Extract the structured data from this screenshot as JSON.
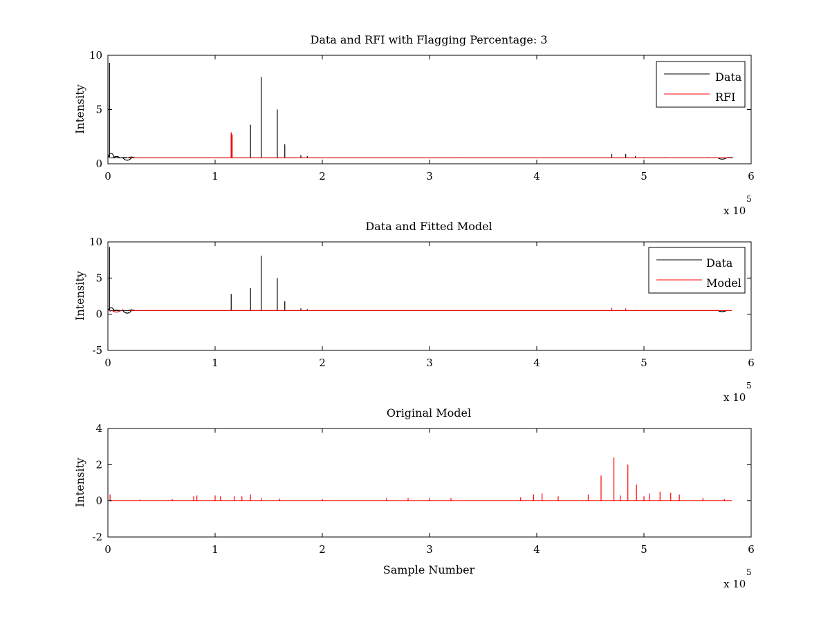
{
  "chart_data": [
    {
      "type": "line",
      "title": "Data and RFI with Flagging Percentage: 3",
      "xlabel": "",
      "ylabel": "Intensity",
      "xlim": [
        0,
        600000
      ],
      "ylim": [
        0,
        10
      ],
      "xticks": [
        0,
        1,
        2,
        3,
        4,
        5,
        6
      ],
      "yticks": [
        0,
        5,
        10
      ],
      "x_multiplier": {
        "base": "x 10",
        "exponent": "5"
      },
      "grid": false,
      "legend": "top-right",
      "baseline": 0.55,
      "series": [
        {
          "name": "Data",
          "color": "#000000",
          "spikes": [
            [
              1500,
              9.3
            ],
            [
              115000,
              2.8
            ],
            [
              133000,
              3.6
            ],
            [
              143000,
              8.0
            ],
            [
              158000,
              5.0
            ],
            [
              165000,
              1.8
            ],
            [
              180000,
              0.8
            ],
            [
              186000,
              0.7
            ],
            [
              470000,
              0.9
            ],
            [
              483000,
              0.9
            ],
            [
              492000,
              0.7
            ],
            [
              500000,
              0.6
            ],
            [
              520000,
              0.6
            ],
            [
              560000,
              0.6
            ]
          ],
          "bumps": [
            [
              3000,
              1.4
            ],
            [
              8000,
              0.8
            ],
            [
              15000,
              0.6
            ],
            [
              22000,
              0.7
            ],
            [
              580000,
              0.6
            ]
          ],
          "dips": [
            [
              18000,
              0.1
            ],
            [
              573000,
              0.3
            ]
          ]
        },
        {
          "name": "RFI",
          "color": "#ff0000",
          "spikes": [
            [
              115000,
              2.9
            ],
            [
              116000,
              2.7
            ],
            [
              260000,
              0.6
            ],
            [
              330000,
              0.6
            ],
            [
              432000,
              0.6
            ]
          ]
        }
      ]
    },
    {
      "type": "line",
      "title": "Data and Fitted Model",
      "xlabel": "",
      "ylabel": "Intensity",
      "xlim": [
        0,
        600000
      ],
      "ylim": [
        -5,
        10
      ],
      "xticks": [
        0,
        1,
        2,
        3,
        4,
        5,
        6
      ],
      "yticks": [
        -5,
        0,
        5,
        10
      ],
      "x_multiplier": {
        "base": "x 10",
        "exponent": "5"
      },
      "grid": false,
      "legend": "top-right",
      "baseline": 0.5,
      "series": [
        {
          "name": "Data",
          "color": "#000000",
          "spikes": [
            [
              1500,
              9.3
            ],
            [
              115000,
              2.8
            ],
            [
              133000,
              3.6
            ],
            [
              143000,
              8.1
            ],
            [
              158000,
              5.0
            ],
            [
              165000,
              1.8
            ],
            [
              180000,
              0.8
            ],
            [
              186000,
              0.7
            ]
          ],
          "bumps": [
            [
              3000,
              1.3
            ],
            [
              8000,
              0.6
            ],
            [
              22000,
              0.7
            ]
          ],
          "dips": [
            [
              18000,
              -0.2
            ],
            [
              573000,
              0.2
            ]
          ]
        },
        {
          "name": "Model",
          "color": "#ff0000",
          "spikes": [
            [
              2000,
              0.3
            ],
            [
              14000,
              0.7
            ],
            [
              470000,
              0.9
            ],
            [
              483000,
              0.8
            ],
            [
              492000,
              0.6
            ]
          ],
          "dips": [
            [
              8000,
              0.1
            ]
          ]
        }
      ]
    },
    {
      "type": "line",
      "title": "Original Model",
      "xlabel": "Sample Number",
      "ylabel": "Intensity",
      "xlim": [
        0,
        600000
      ],
      "ylim": [
        -2,
        4
      ],
      "xticks": [
        0,
        1,
        2,
        3,
        4,
        5,
        6
      ],
      "yticks": [
        -2,
        0,
        2,
        4
      ],
      "x_multiplier": {
        "base": "x 10",
        "exponent": "5"
      },
      "grid": false,
      "legend": "none",
      "baseline": 0.0,
      "series": [
        {
          "name": "",
          "color": "#ff0000",
          "spikes": [
            [
              2000,
              0.35
            ],
            [
              30000,
              0.08
            ],
            [
              60000,
              0.1
            ],
            [
              80000,
              0.25
            ],
            [
              83000,
              0.3
            ],
            [
              100000,
              0.3
            ],
            [
              105000,
              0.25
            ],
            [
              118000,
              0.25
            ],
            [
              125000,
              0.25
            ],
            [
              133000,
              0.35
            ],
            [
              143000,
              0.15
            ],
            [
              160000,
              0.12
            ],
            [
              200000,
              0.1
            ],
            [
              260000,
              0.15
            ],
            [
              280000,
              0.15
            ],
            [
              300000,
              0.15
            ],
            [
              320000,
              0.15
            ],
            [
              385000,
              0.2
            ],
            [
              397000,
              0.35
            ],
            [
              405000,
              0.4
            ],
            [
              420000,
              0.25
            ],
            [
              448000,
              0.35
            ],
            [
              460000,
              1.4
            ],
            [
              472000,
              2.4
            ],
            [
              478000,
              0.3
            ],
            [
              485000,
              2.0
            ],
            [
              493000,
              0.9
            ],
            [
              500000,
              0.25
            ],
            [
              505000,
              0.4
            ],
            [
              515000,
              0.5
            ],
            [
              525000,
              0.45
            ],
            [
              533000,
              0.35
            ],
            [
              555000,
              0.15
            ],
            [
              575000,
              0.1
            ]
          ]
        }
      ]
    }
  ]
}
